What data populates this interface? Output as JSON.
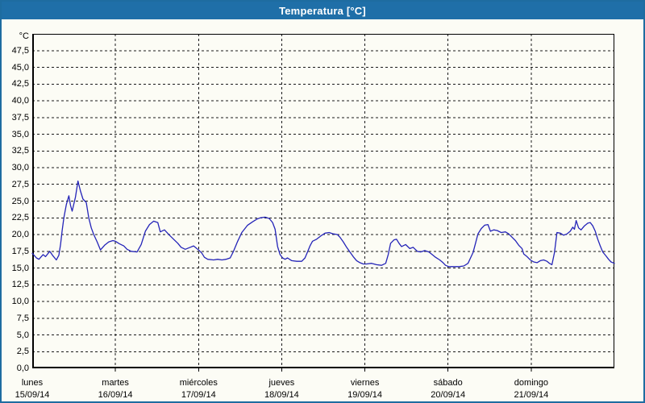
{
  "window": {
    "title": "Temperatura [°C]"
  },
  "colors": {
    "titlebar_bg": "#1F6FA8",
    "window_border": "#1E6CA0",
    "panel_bg": "#FCFCF5",
    "grid_color": "#1A1A1A",
    "axis_color": "#000000",
    "line_color": "#2424B8",
    "text_color": "#000000"
  },
  "chart_data": {
    "type": "line",
    "title": "Temperatura [°C]",
    "unit_label": "°C",
    "ylim": [
      0,
      50
    ],
    "x_range_days": [
      0,
      7
    ],
    "grid": "dashed",
    "legend": "none",
    "y_ticks": [
      {
        "value": 47.5,
        "label": "47,5"
      },
      {
        "value": 45.0,
        "label": "45,0"
      },
      {
        "value": 42.5,
        "label": "42,5"
      },
      {
        "value": 40.0,
        "label": "40,0"
      },
      {
        "value": 37.5,
        "label": "37,5"
      },
      {
        "value": 35.0,
        "label": "35,0"
      },
      {
        "value": 32.5,
        "label": "32,5"
      },
      {
        "value": 30.0,
        "label": "30,0"
      },
      {
        "value": 27.5,
        "label": "27,5"
      },
      {
        "value": 25.0,
        "label": "25,0"
      },
      {
        "value": 22.5,
        "label": "22,5"
      },
      {
        "value": 20.0,
        "label": "20,0"
      },
      {
        "value": 17.5,
        "label": "17,5"
      },
      {
        "value": 15.0,
        "label": "15,0"
      },
      {
        "value": 12.5,
        "label": "12,5"
      },
      {
        "value": 10.0,
        "label": "10,0"
      },
      {
        "value": 7.5,
        "label": "7,5"
      },
      {
        "value": 5.0,
        "label": "5,0"
      },
      {
        "value": 2.5,
        "label": "2,5"
      },
      {
        "value": 0.0,
        "label": "0,0"
      }
    ],
    "x_axis_days": [
      {
        "name": "lunes",
        "date": "15/09/14"
      },
      {
        "name": "martes",
        "date": "16/09/14"
      },
      {
        "name": "miércoles",
        "date": "17/09/14"
      },
      {
        "name": "jueves",
        "date": "18/09/14"
      },
      {
        "name": "viernes",
        "date": "19/09/14"
      },
      {
        "name": "sábado",
        "date": "20/09/14"
      },
      {
        "name": "domingo",
        "date": "21/09/14"
      }
    ],
    "series": [
      {
        "name": "Temperatura",
        "points": [
          [
            0.0,
            17.2
          ],
          [
            0.05,
            16.5
          ],
          [
            0.08,
            16.3
          ],
          [
            0.13,
            17.0
          ],
          [
            0.16,
            16.7
          ],
          [
            0.21,
            17.5
          ],
          [
            0.25,
            16.8
          ],
          [
            0.29,
            16.2
          ],
          [
            0.32,
            16.9
          ],
          [
            0.34,
            18.5
          ],
          [
            0.36,
            20.6
          ],
          [
            0.38,
            22.5
          ],
          [
            0.41,
            24.5
          ],
          [
            0.44,
            25.8
          ],
          [
            0.46,
            24.4
          ],
          [
            0.48,
            23.5
          ],
          [
            0.52,
            25.6
          ],
          [
            0.55,
            28.0
          ],
          [
            0.58,
            26.5
          ],
          [
            0.61,
            25.3
          ],
          [
            0.65,
            24.8
          ],
          [
            0.68,
            22.5
          ],
          [
            0.71,
            21.0
          ],
          [
            0.74,
            20.0
          ],
          [
            0.78,
            18.9
          ],
          [
            0.82,
            17.7
          ],
          [
            0.87,
            18.4
          ],
          [
            0.92,
            18.9
          ],
          [
            0.97,
            19.1
          ],
          [
            1.0,
            19.0
          ],
          [
            1.05,
            18.6
          ],
          [
            1.1,
            18.3
          ],
          [
            1.14,
            17.8
          ],
          [
            1.19,
            17.5
          ],
          [
            1.26,
            17.4
          ],
          [
            1.31,
            18.5
          ],
          [
            1.36,
            20.5
          ],
          [
            1.41,
            21.5
          ],
          [
            1.46,
            22.0
          ],
          [
            1.51,
            21.8
          ],
          [
            1.54,
            20.4
          ],
          [
            1.59,
            20.7
          ],
          [
            1.65,
            19.9
          ],
          [
            1.7,
            19.3
          ],
          [
            1.75,
            18.7
          ],
          [
            1.79,
            18.1
          ],
          [
            1.84,
            17.8
          ],
          [
            1.9,
            18.1
          ],
          [
            1.94,
            18.3
          ],
          [
            2.0,
            17.7
          ],
          [
            2.04,
            17.2
          ],
          [
            2.07,
            16.6
          ],
          [
            2.11,
            16.3
          ],
          [
            2.18,
            16.2
          ],
          [
            2.23,
            16.3
          ],
          [
            2.28,
            16.2
          ],
          [
            2.33,
            16.3
          ],
          [
            2.38,
            16.5
          ],
          [
            2.42,
            17.5
          ],
          [
            2.47,
            19.0
          ],
          [
            2.52,
            20.3
          ],
          [
            2.59,
            21.4
          ],
          [
            2.65,
            21.9
          ],
          [
            2.7,
            22.3
          ],
          [
            2.74,
            22.5
          ],
          [
            2.8,
            22.6
          ],
          [
            2.85,
            22.4
          ],
          [
            2.89,
            21.8
          ],
          [
            2.92,
            20.8
          ],
          [
            2.95,
            18.2
          ],
          [
            2.98,
            17.0
          ],
          [
            3.01,
            16.5
          ],
          [
            3.04,
            16.3
          ],
          [
            3.07,
            16.5
          ],
          [
            3.12,
            16.1
          ],
          [
            3.18,
            16.0
          ],
          [
            3.24,
            16.0
          ],
          [
            3.28,
            16.5
          ],
          [
            3.31,
            17.4
          ],
          [
            3.34,
            18.3
          ],
          [
            3.37,
            19.0
          ],
          [
            3.42,
            19.3
          ],
          [
            3.47,
            19.8
          ],
          [
            3.52,
            20.2
          ],
          [
            3.57,
            20.3
          ],
          [
            3.62,
            20.1
          ],
          [
            3.67,
            20.0
          ],
          [
            3.7,
            19.6
          ],
          [
            3.74,
            18.9
          ],
          [
            3.78,
            18.1
          ],
          [
            3.82,
            17.4
          ],
          [
            3.86,
            16.7
          ],
          [
            3.9,
            16.1
          ],
          [
            3.94,
            15.8
          ],
          [
            3.98,
            15.6
          ],
          [
            4.02,
            15.6
          ],
          [
            4.08,
            15.7
          ],
          [
            4.14,
            15.5
          ],
          [
            4.2,
            15.4
          ],
          [
            4.25,
            15.7
          ],
          [
            4.28,
            17.0
          ],
          [
            4.31,
            18.7
          ],
          [
            4.35,
            19.2
          ],
          [
            4.38,
            19.3
          ],
          [
            4.41,
            18.7
          ],
          [
            4.44,
            18.2
          ],
          [
            4.49,
            18.5
          ],
          [
            4.54,
            17.9
          ],
          [
            4.58,
            18.1
          ],
          [
            4.63,
            17.5
          ],
          [
            4.67,
            17.4
          ],
          [
            4.72,
            17.6
          ],
          [
            4.77,
            17.4
          ],
          [
            4.81,
            17.0
          ],
          [
            4.85,
            16.6
          ],
          [
            4.9,
            16.2
          ],
          [
            4.94,
            15.8
          ],
          [
            4.97,
            15.4
          ],
          [
            5.01,
            15.2
          ],
          [
            5.07,
            15.2
          ],
          [
            5.13,
            15.2
          ],
          [
            5.19,
            15.3
          ],
          [
            5.24,
            15.7
          ],
          [
            5.27,
            16.5
          ],
          [
            5.3,
            17.3
          ],
          [
            5.33,
            18.7
          ],
          [
            5.36,
            20.1
          ],
          [
            5.4,
            20.9
          ],
          [
            5.44,
            21.4
          ],
          [
            5.48,
            21.5
          ],
          [
            5.51,
            20.5
          ],
          [
            5.55,
            20.7
          ],
          [
            5.59,
            20.6
          ],
          [
            5.64,
            20.3
          ],
          [
            5.69,
            20.4
          ],
          [
            5.73,
            20.1
          ],
          [
            5.77,
            19.6
          ],
          [
            5.81,
            19.1
          ],
          [
            5.85,
            18.4
          ],
          [
            5.89,
            17.9
          ],
          [
            5.91,
            17.1
          ],
          [
            5.95,
            16.7
          ],
          [
            5.99,
            16.2
          ],
          [
            6.03,
            15.9
          ],
          [
            6.07,
            15.8
          ],
          [
            6.11,
            16.1
          ],
          [
            6.15,
            16.2
          ],
          [
            6.19,
            16.0
          ],
          [
            6.22,
            15.7
          ],
          [
            6.25,
            15.5
          ],
          [
            6.28,
            17.3
          ],
          [
            6.31,
            20.3
          ],
          [
            6.35,
            20.2
          ],
          [
            6.39,
            19.9
          ],
          [
            6.43,
            20.1
          ],
          [
            6.47,
            20.5
          ],
          [
            6.5,
            21.1
          ],
          [
            6.52,
            20.8
          ],
          [
            6.54,
            22.1
          ],
          [
            6.57,
            21.0
          ],
          [
            6.6,
            20.7
          ],
          [
            6.64,
            21.3
          ],
          [
            6.68,
            21.7
          ],
          [
            6.71,
            21.8
          ],
          [
            6.74,
            21.3
          ],
          [
            6.77,
            20.5
          ],
          [
            6.8,
            19.3
          ],
          [
            6.83,
            18.3
          ],
          [
            6.86,
            17.4
          ],
          [
            6.9,
            16.8
          ],
          [
            6.93,
            16.3
          ],
          [
            6.96,
            15.9
          ],
          [
            7.0,
            15.7
          ]
        ]
      }
    ]
  }
}
